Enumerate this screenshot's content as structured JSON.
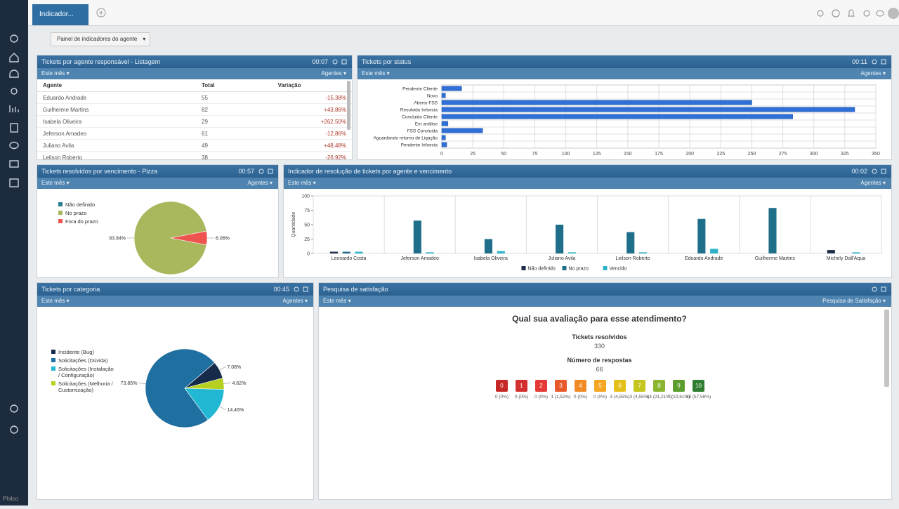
{
  "app": {
    "tab": "Indicador...",
    "panel_button": "Painel de indicadores do agente",
    "brand": "Philco"
  },
  "table_panel": {
    "title": "Tickets por agente responsável - Listagem",
    "timer": "00:07",
    "filter": "Este mês",
    "scope": "Agentes",
    "headers": [
      "Agente",
      "Total",
      "Variação"
    ],
    "rows": [
      [
        "Eduardo Andrade",
        55,
        "-15,38%"
      ],
      [
        "Guilherme Martins",
        82,
        "+43,86%"
      ],
      [
        "Isabela Oliveira",
        29,
        "+262,50%"
      ],
      [
        "Jeferson Amadeo",
        61,
        "-12,86%"
      ],
      [
        "Juliano Avila",
        49,
        "+48,48%"
      ],
      [
        "Leilson Roberto",
        38,
        "-26,92%"
      ]
    ]
  },
  "chart_data": [
    {
      "type": "bar",
      "orientation": "horizontal",
      "title": "Tickets por status",
      "timer": "00:11",
      "filter": "Este mês",
      "scope": "Agentes",
      "categories": [
        "Pendente Cliente",
        "Novo",
        "Aberto FSS",
        "Resolvido Infoecia",
        "Concluido Cliente",
        "Em análise",
        "FSS Concluida",
        "Aguardando retorno de Ligação",
        "Pendente Infoecia"
      ],
      "values": [
        16,
        3,
        250,
        333,
        283,
        5,
        33,
        3,
        4
      ],
      "color": "#2f6fd6",
      "xlim": [
        0,
        350
      ],
      "xticks": [
        0,
        25,
        50,
        75,
        100,
        125,
        150,
        175,
        200,
        225,
        250,
        275,
        300,
        325,
        350
      ],
      "grid": true
    },
    {
      "type": "pie",
      "title": "Tickets resolvidos por vencimento - Pizza",
      "timer": "00:57",
      "filter": "Este mês",
      "scope": "Agentes",
      "categories": [
        "Não definido",
        "No prazo",
        "Fora do prazo"
      ],
      "values": [
        0,
        93.94,
        6.06
      ],
      "value_labels": [
        null,
        "93.94%",
        "6.06%"
      ],
      "colors": [
        "#2b7f8e",
        "#a9b85c",
        "#ef5350"
      ],
      "legend": "left"
    },
    {
      "type": "bar",
      "orientation": "vertical",
      "title": "Indicador de resolução de tickets por agente e vencimento",
      "timer": "00:02",
      "filter": "Este mês",
      "scope": "Agentes",
      "y_label": "Quantidade",
      "categories": [
        "Leonardo Costa",
        "Jeferson Amadeo",
        "Isabela Oliveira",
        "Juliano Avila",
        "Leilson Roberto",
        "Eduardo Andrade",
        "Guilherme Martins",
        "Michely Dall'Aqua"
      ],
      "series": [
        {
          "name": "Não definido",
          "color": "#1c2e4a",
          "values": [
            3,
            0,
            0,
            0,
            0,
            0,
            0,
            6
          ]
        },
        {
          "name": "No prazo",
          "color": "#1f6f8b",
          "values": [
            3,
            57,
            25,
            50,
            37,
            60,
            79,
            0
          ]
        },
        {
          "name": "Vencido",
          "color": "#2bb3c8",
          "values": [
            3,
            2,
            4,
            2,
            2,
            8,
            0,
            2
          ]
        }
      ],
      "ylim": [
        0,
        100
      ],
      "yticks": [
        0,
        25,
        50,
        75,
        100
      ],
      "legend": "bottom"
    },
    {
      "type": "pie",
      "title": "Tickets por categoria",
      "timer": "00:45",
      "filter": "Este mês",
      "scope": "Agentes",
      "categories": [
        "Incidente (Bug)",
        "Solicitações (Dúvida)",
        "Solicitações (Instalação / Configuração)",
        "Solicitações (Melhoria / Customização)"
      ],
      "values": [
        7.08,
        73.85,
        14.46,
        4.62
      ],
      "value_labels": [
        "7.08%",
        "73.85%",
        "14.46%",
        "4.62%"
      ],
      "colors": [
        "#162a4a",
        "#1f6fa0",
        "#22b8d4",
        "#b5d020"
      ],
      "legend": "left"
    }
  ],
  "survey": {
    "title": "Pesquisa de satisfação",
    "filter": "Este mês",
    "scope": "Pesquisa de Satisfação",
    "question": "Qual sua avaliação para esse atendimento?",
    "resolved_label": "Tickets resolvidos",
    "resolved": 330,
    "responses_label": "Número de respostas",
    "responses": 66,
    "scores": [
      0,
      1,
      2,
      3,
      4,
      5,
      6,
      7,
      8,
      9,
      10
    ],
    "counts": [
      0,
      0,
      0,
      1,
      0,
      0,
      3,
      3,
      14,
      7,
      38
    ],
    "count_labels": [
      "0 (0%)",
      "0 (0%)",
      "0 (0%)",
      "1 (1,52%)",
      "0 (0%)",
      "0 (0%)",
      "3 (4,55%)",
      "3 (4,55%)",
      "14 (21,21%)",
      "7 (10,61%)",
      "38 (57,58%)"
    ],
    "colors": [
      "#c62828",
      "#d32f2f",
      "#e53935",
      "#e8592c",
      "#f08a24",
      "#f5a623",
      "#e6c01a",
      "#c4c61e",
      "#8cb531",
      "#5c9e2e",
      "#2e7d32"
    ]
  }
}
